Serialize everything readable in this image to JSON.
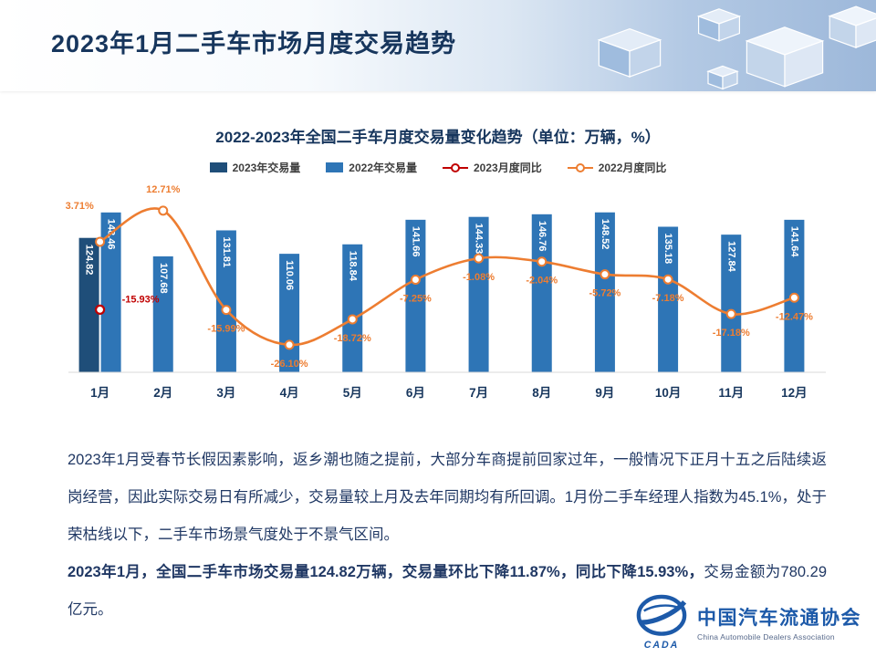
{
  "header": {
    "title": "2023年1月二手车市场月度交易趋势"
  },
  "chart_data": {
    "type": "bar+line",
    "title": "2022-2023年全国二手车月度交易量变化趋势（单位：万辆，%）",
    "categories": [
      "1月",
      "2月",
      "3月",
      "4月",
      "5月",
      "6月",
      "7月",
      "8月",
      "9月",
      "10月",
      "11月",
      "12月"
    ],
    "series": [
      {
        "name": "2023年交易量",
        "type": "bar",
        "unit": "万辆",
        "color": "#1F4E79",
        "values": [
          124.82,
          null,
          null,
          null,
          null,
          null,
          null,
          null,
          null,
          null,
          null,
          null
        ]
      },
      {
        "name": "2022年交易量",
        "type": "bar",
        "unit": "万辆",
        "color": "#2E75B6",
        "values": [
          148.46,
          107.68,
          131.81,
          110.06,
          118.84,
          141.66,
          144.33,
          146.76,
          148.52,
          135.18,
          127.84,
          141.64
        ]
      },
      {
        "name": "2023月度同比",
        "type": "line",
        "unit": "%",
        "color": "#C00000",
        "values": [
          -15.93,
          null,
          null,
          null,
          null,
          null,
          null,
          null,
          null,
          null,
          null,
          null
        ]
      },
      {
        "name": "2022月度同比",
        "type": "line",
        "unit": "%",
        "color": "#ED7D31",
        "values": [
          3.71,
          12.71,
          -15.99,
          -26.1,
          -18.72,
          -7.25,
          -1.08,
          -2.04,
          -5.72,
          -7.18,
          -17.18,
          -12.47
        ]
      }
    ],
    "legend_position": "top",
    "gridlines": false
  },
  "body": {
    "paragraph1": "2023年1月受春节长假因素影响，返乡潮也随之提前，大部分车商提前回家过年，一般情况下正月十五之后陆续返岗经营，因此实际交易日有所减少，交易量较上月及去年同期均有所回调。1月份二手车经理人指数为45.1%，处于荣枯线以下，二手车市场景气度处于不景气区间。",
    "paragraph2_bold": "2023年1月，全国二手车市场交易量124.82万辆，交易量环比下降11.87%，同比下降15.93%，",
    "paragraph2_regular": "交易金额为780.29亿元。"
  },
  "logo": {
    "name_cn": "中国汽车流通协会",
    "name_en": "China Automobile Dealers Association",
    "badge": "CADA"
  }
}
